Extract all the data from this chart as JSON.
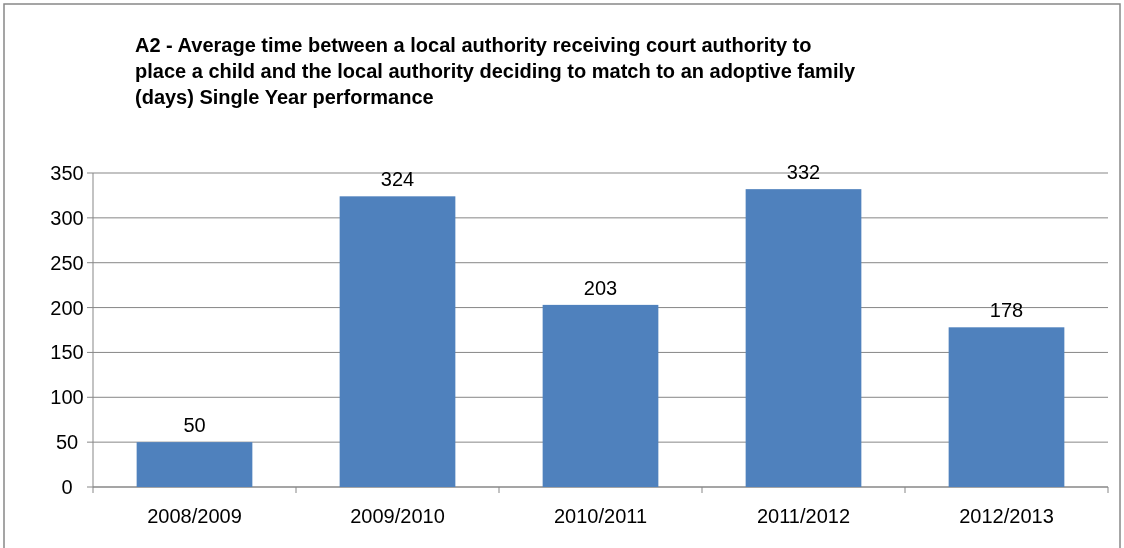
{
  "chart_data": {
    "type": "bar",
    "title": "A2 - Average time between a local authority receiving court authority to\nplace a child and the local authority deciding to match to an adoptive family\n(days) Single Year performance",
    "categories": [
      "2008/2009",
      "2009/2010",
      "2010/2011",
      "2011/2012",
      "2012/2013"
    ],
    "values": [
      50,
      324,
      203,
      332,
      178
    ],
    "color": "#4f81bd",
    "ylim": [
      0,
      350
    ],
    "yticks": [
      0,
      50,
      100,
      150,
      200,
      250,
      300,
      350
    ],
    "grid": "y",
    "data_labels": true
  }
}
